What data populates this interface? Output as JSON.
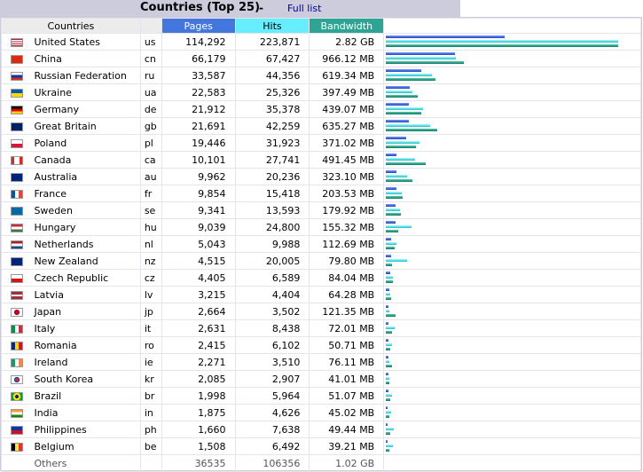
{
  "header": {
    "title": "Countries (Top 25)",
    "separator": "-",
    "full_list_link": "Full list"
  },
  "columns": {
    "countries": "Countries",
    "pages": "Pages",
    "hits": "Hits",
    "bandwidth": "Bandwidth"
  },
  "colors": {
    "pages": "#4477dd",
    "hits": "#66eeff",
    "bandwidth": "#2ea495",
    "header_bg": "#ccccdd"
  },
  "rows": [
    {
      "flag": "flag-us-icon",
      "country": "United States",
      "code": "us",
      "pages": "114,292",
      "hits": "223,871",
      "bandwidth": "2.82 GB",
      "p": 114292,
      "h": 223871,
      "b": 2887.68
    },
    {
      "flag": "flag-cn-icon",
      "country": "China",
      "code": "cn",
      "pages": "66,179",
      "hits": "67,427",
      "bandwidth": "966.12 MB",
      "p": 66179,
      "h": 67427,
      "b": 966.12
    },
    {
      "flag": "flag-ru-icon",
      "country": "Russian Federation",
      "code": "ru",
      "pages": "33,587",
      "hits": "44,356",
      "bandwidth": "619.34 MB",
      "p": 33587,
      "h": 44356,
      "b": 619.34
    },
    {
      "flag": "flag-ua-icon",
      "country": "Ukraine",
      "code": "ua",
      "pages": "22,583",
      "hits": "25,326",
      "bandwidth": "397.49 MB",
      "p": 22583,
      "h": 25326,
      "b": 397.49
    },
    {
      "flag": "flag-de-icon",
      "country": "Germany",
      "code": "de",
      "pages": "21,912",
      "hits": "35,378",
      "bandwidth": "439.07 MB",
      "p": 21912,
      "h": 35378,
      "b": 439.07
    },
    {
      "flag": "flag-gb-icon",
      "country": "Great Britain",
      "code": "gb",
      "pages": "21,691",
      "hits": "42,259",
      "bandwidth": "635.27 MB",
      "p": 21691,
      "h": 42259,
      "b": 635.27
    },
    {
      "flag": "flag-pl-icon",
      "country": "Poland",
      "code": "pl",
      "pages": "19,446",
      "hits": "31,923",
      "bandwidth": "371.02 MB",
      "p": 19446,
      "h": 31923,
      "b": 371.02
    },
    {
      "flag": "flag-ca-icon",
      "country": "Canada",
      "code": "ca",
      "pages": "10,101",
      "hits": "27,741",
      "bandwidth": "491.45 MB",
      "p": 10101,
      "h": 27741,
      "b": 491.45
    },
    {
      "flag": "flag-au-icon",
      "country": "Australia",
      "code": "au",
      "pages": "9,962",
      "hits": "20,236",
      "bandwidth": "323.10 MB",
      "p": 9962,
      "h": 20236,
      "b": 323.1
    },
    {
      "flag": "flag-fr-icon",
      "country": "France",
      "code": "fr",
      "pages": "9,854",
      "hits": "15,418",
      "bandwidth": "203.53 MB",
      "p": 9854,
      "h": 15418,
      "b": 203.53
    },
    {
      "flag": "flag-se-icon",
      "country": "Sweden",
      "code": "se",
      "pages": "9,341",
      "hits": "13,593",
      "bandwidth": "179.92 MB",
      "p": 9341,
      "h": 13593,
      "b": 179.92
    },
    {
      "flag": "flag-hu-icon",
      "country": "Hungary",
      "code": "hu",
      "pages": "9,039",
      "hits": "24,800",
      "bandwidth": "155.32 MB",
      "p": 9039,
      "h": 24800,
      "b": 155.32
    },
    {
      "flag": "flag-nl-icon",
      "country": "Netherlands",
      "code": "nl",
      "pages": "5,043",
      "hits": "9,988",
      "bandwidth": "112.69 MB",
      "p": 5043,
      "h": 9988,
      "b": 112.69
    },
    {
      "flag": "flag-nz-icon",
      "country": "New Zealand",
      "code": "nz",
      "pages": "4,515",
      "hits": "20,005",
      "bandwidth": "79.80 MB",
      "p": 4515,
      "h": 20005,
      "b": 79.8
    },
    {
      "flag": "flag-cz-icon",
      "country": "Czech Republic",
      "code": "cz",
      "pages": "4,405",
      "hits": "6,589",
      "bandwidth": "84.04 MB",
      "p": 4405,
      "h": 6589,
      "b": 84.04
    },
    {
      "flag": "flag-lv-icon",
      "country": "Latvia",
      "code": "lv",
      "pages": "3,215",
      "hits": "4,404",
      "bandwidth": "64.28 MB",
      "p": 3215,
      "h": 4404,
      "b": 64.28
    },
    {
      "flag": "flag-jp-icon",
      "country": "Japan",
      "code": "jp",
      "pages": "2,664",
      "hits": "3,502",
      "bandwidth": "121.35 MB",
      "p": 2664,
      "h": 3502,
      "b": 121.35
    },
    {
      "flag": "flag-it-icon",
      "country": "Italy",
      "code": "it",
      "pages": "2,631",
      "hits": "8,438",
      "bandwidth": "72.01 MB",
      "p": 2631,
      "h": 8438,
      "b": 72.01
    },
    {
      "flag": "flag-ro-icon",
      "country": "Romania",
      "code": "ro",
      "pages": "2,415",
      "hits": "6,102",
      "bandwidth": "50.71 MB",
      "p": 2415,
      "h": 6102,
      "b": 50.71
    },
    {
      "flag": "flag-ie-icon",
      "country": "Ireland",
      "code": "ie",
      "pages": "2,271",
      "hits": "3,510",
      "bandwidth": "76.11 MB",
      "p": 2271,
      "h": 3510,
      "b": 76.11
    },
    {
      "flag": "flag-kr-icon",
      "country": "South Korea",
      "code": "kr",
      "pages": "2,085",
      "hits": "2,907",
      "bandwidth": "41.01 MB",
      "p": 2085,
      "h": 2907,
      "b": 41.01
    },
    {
      "flag": "flag-br-icon",
      "country": "Brazil",
      "code": "br",
      "pages": "1,998",
      "hits": "5,964",
      "bandwidth": "51.07 MB",
      "p": 1998,
      "h": 5964,
      "b": 51.07
    },
    {
      "flag": "flag-in-icon",
      "country": "India",
      "code": "in",
      "pages": "1,875",
      "hits": "4,626",
      "bandwidth": "45.02 MB",
      "p": 1875,
      "h": 4626,
      "b": 45.02
    },
    {
      "flag": "flag-ph-icon",
      "country": "Philippines",
      "code": "ph",
      "pages": "1,660",
      "hits": "7,638",
      "bandwidth": "49.44 MB",
      "p": 1660,
      "h": 7638,
      "b": 49.44
    },
    {
      "flag": "flag-be-icon",
      "country": "Belgium",
      "code": "be",
      "pages": "1,508",
      "hits": "6,492",
      "bandwidth": "39.21 MB",
      "p": 1508,
      "h": 6492,
      "b": 39.21
    }
  ],
  "others": {
    "label": "Others",
    "pages": "36535",
    "hits": "106356",
    "bandwidth": "1.02 GB"
  }
}
